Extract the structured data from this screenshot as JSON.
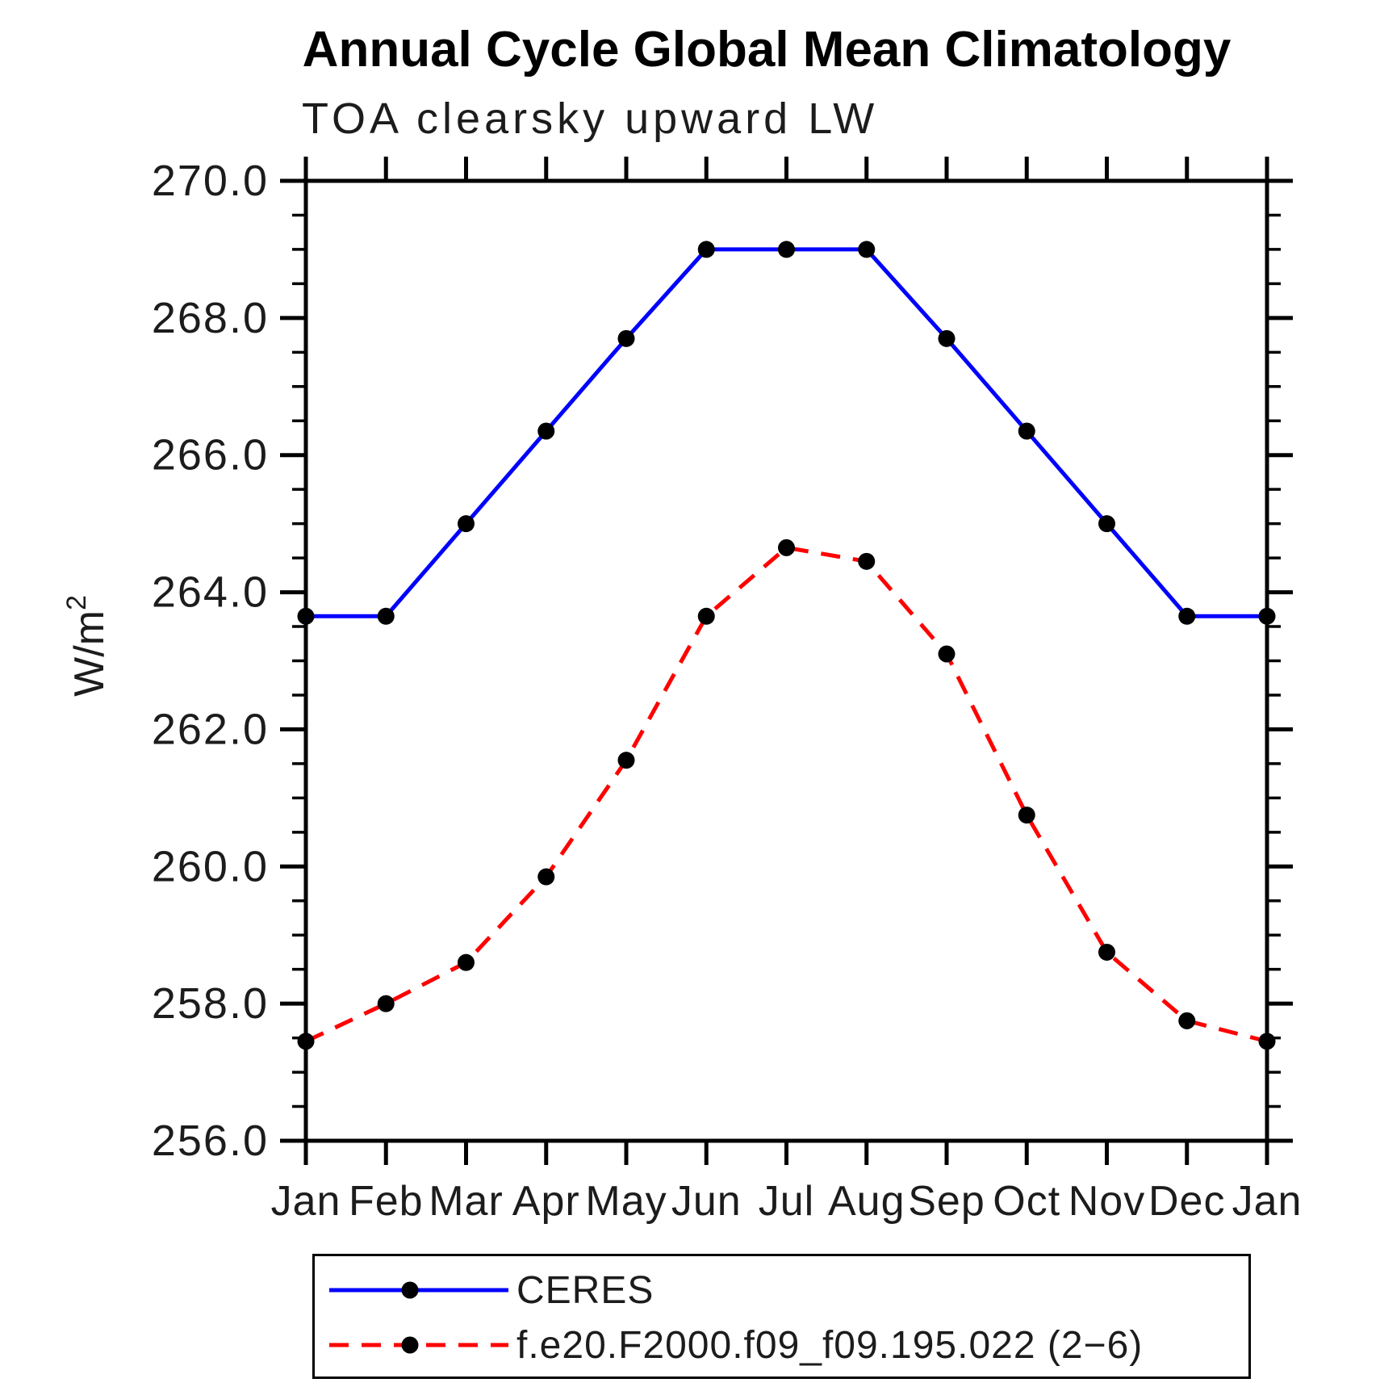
{
  "chart_data": {
    "type": "line",
    "title": "Annual Cycle Global Mean Climatology",
    "subtitle": "TOA clearsky upward LW",
    "ylabel": "W/m²",
    "xlabel": "",
    "ylim": [
      256.0,
      270.0
    ],
    "ytick_step": 2.0,
    "ytick_minor_step": 0.5,
    "grid": false,
    "legend_position": "bottom",
    "categories": [
      "Jan",
      "Feb",
      "Mar",
      "Apr",
      "May",
      "Jun",
      "Jul",
      "Aug",
      "Sep",
      "Oct",
      "Nov",
      "Dec",
      "Jan"
    ],
    "series": [
      {
        "name": "CERES",
        "color": "#0000ff",
        "line_style": "solid",
        "marker": "filled-circle",
        "marker_color": "#000000",
        "values": [
          263.65,
          263.65,
          265.0,
          266.35,
          267.7,
          269.0,
          269.0,
          269.0,
          267.7,
          266.35,
          265.0,
          263.65,
          263.65
        ]
      },
      {
        "name": "f.e20.F2000.f09_f09.195.022 (2−6)",
        "color": "#ff0000",
        "line_style": "dashed",
        "marker": "filled-circle",
        "marker_color": "#000000",
        "values": [
          257.45,
          258.0,
          258.6,
          259.85,
          261.55,
          263.65,
          264.65,
          264.45,
          263.1,
          260.75,
          258.75,
          257.75,
          257.45
        ]
      }
    ]
  },
  "colors": {
    "background": "#ffffff",
    "axis": "#000000",
    "tick_label": "#1c1c1c",
    "title": "#000000",
    "ceres_line": "#0000ff",
    "model_line": "#ff0000",
    "marker": "#000000"
  }
}
